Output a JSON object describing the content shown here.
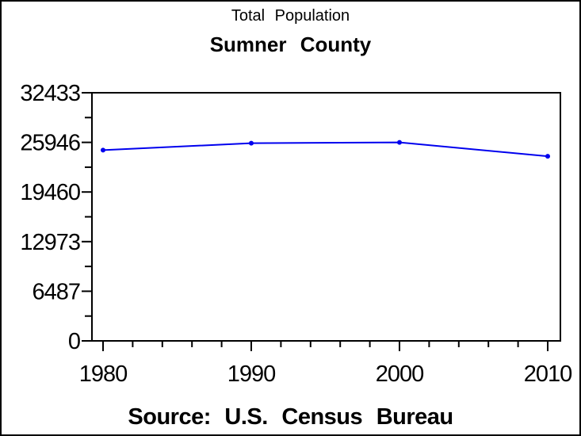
{
  "chart_data": {
    "type": "line",
    "title": "Total Population",
    "subtitle": "Sumner County",
    "source": "Source: U.S. Census Bureau",
    "categories": [
      "1980",
      "1990",
      "2000",
      "2010"
    ],
    "series": [
      {
        "name": "Total Population",
        "values": [
          24928,
          25841,
          25946,
          24132
        ]
      }
    ],
    "xlabel": "",
    "ylabel": "",
    "xlim": [
      1980,
      2010
    ],
    "ylim": [
      0,
      32433
    ],
    "y_ticks": [
      0,
      6487,
      12973,
      19460,
      25946,
      32433
    ],
    "y_tick_labels": [
      "0",
      "6487",
      "12973",
      "19460",
      "25946",
      "32433"
    ],
    "x_tick_labels": [
      "1980",
      "1990",
      "2000",
      "2010"
    ],
    "x_minor_step_years": 2,
    "y_minor_ticks": "midpoints",
    "grid": false,
    "legend": false,
    "marker": "dot",
    "colors": {
      "line": "#0000ee",
      "marker": "#0000ee",
      "axis": "#000000",
      "text": "#000000",
      "background": "#ffffff",
      "border": "#000000"
    }
  }
}
